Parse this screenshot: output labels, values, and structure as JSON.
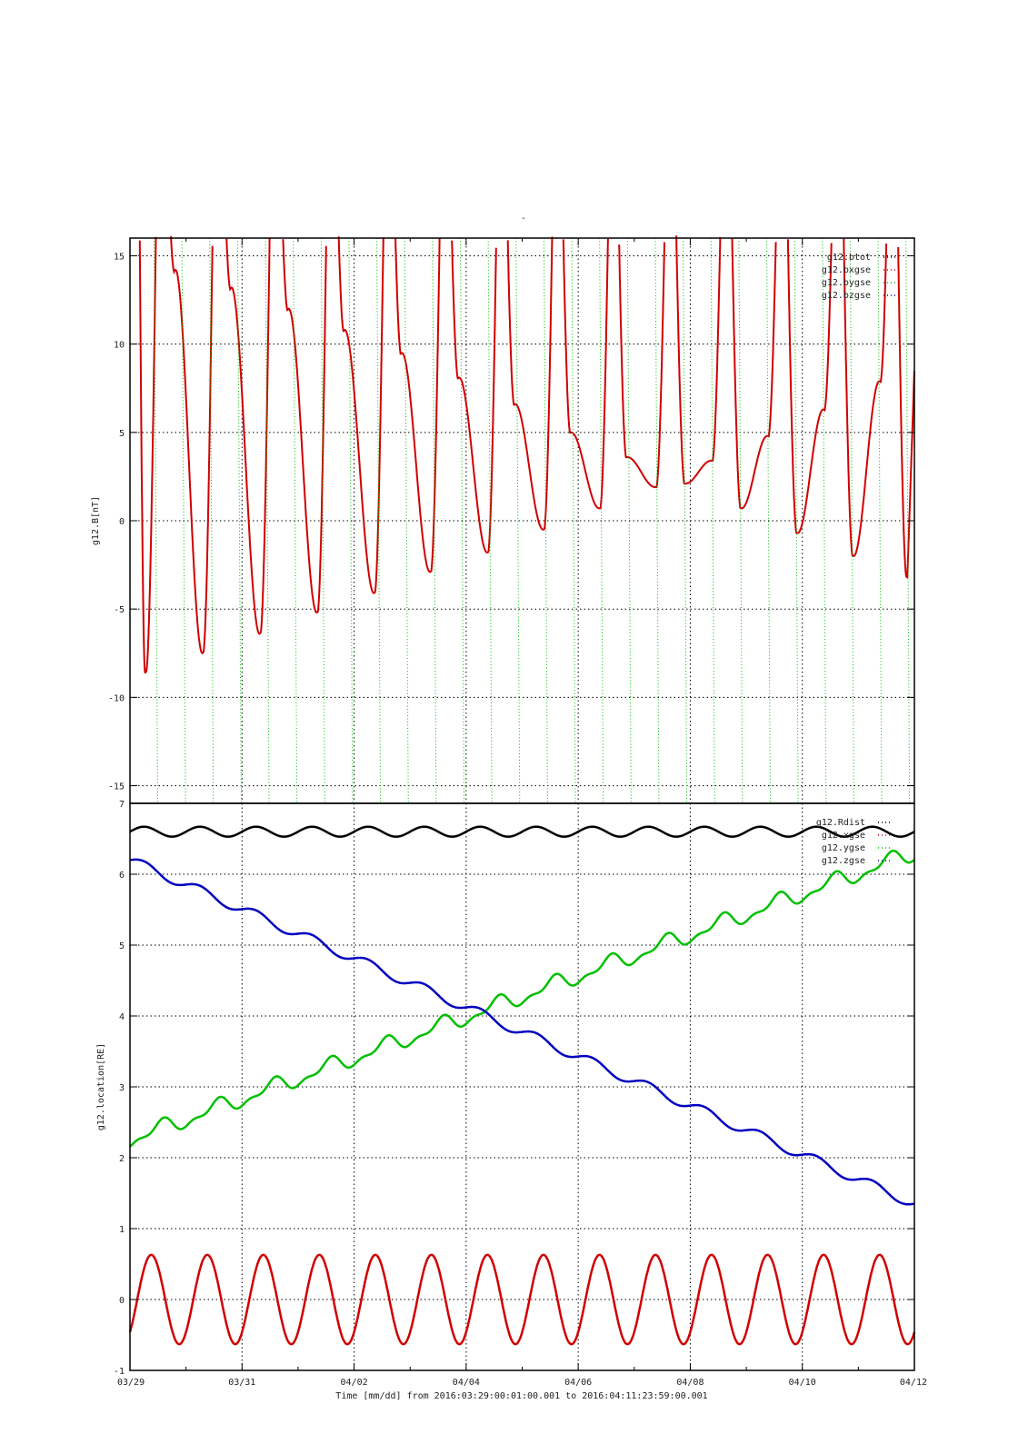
{
  "chart_data": [
    {
      "type": "line",
      "title": "-",
      "ylabel": "g12.B[nT]",
      "ylim": [
        -16,
        16
      ],
      "yticks": [
        -15,
        -10,
        -5,
        0,
        5,
        10,
        15
      ],
      "grid": true,
      "legend_position": "top-right",
      "series": [
        {
          "name": "g12.btot",
          "color": "#000000",
          "values": []
        },
        {
          "name": "g12.bxgse",
          "color": "#d00000",
          "x": [
            "03/29 06:30",
            "03/29 19:30",
            "03/30 07:00",
            "03/30 19:30",
            "03/31 07:30",
            "03/31 20:00",
            "04/01 08:00",
            "04/01 20:00",
            "04/02 08:30",
            "04/02 20:30",
            "04/03 08:30",
            "04/03 21:00",
            "04/04 09:00",
            "04/04 21:00",
            "04/05 09:00",
            "04/05 21:00",
            "04/06 09:00",
            "04/06 21:00",
            "04/07 09:00",
            "04/07 22:00",
            "04/08 09:00",
            "04/08 22:00",
            "04/09 09:00",
            "04/09 22:00",
            "04/10 09:00",
            "04/10 22:00",
            "04/11 09:00",
            "04/11 21:00"
          ],
          "values": [
            -8.6,
            14.2,
            -7.5,
            13.2,
            -6.4,
            12.0,
            -5.2,
            10.8,
            -4.1,
            9.5,
            -2.9,
            8.1,
            -1.8,
            6.6,
            -0.5,
            5.0,
            0.7,
            3.6,
            1.9,
            2.1,
            3.4,
            0.7,
            4.8,
            -0.7,
            6.3,
            -2.0,
            7.9,
            -3.2
          ]
        },
        {
          "name": "g12.bygse",
          "color": "#00c000",
          "values": []
        },
        {
          "name": "g12.bzgse",
          "color": "#0000c0",
          "values": []
        }
      ]
    },
    {
      "type": "line",
      "ylabel": "g12.location[RE]",
      "ylim": [
        -1,
        7
      ],
      "yticks": [
        -1,
        0,
        1,
        2,
        3,
        4,
        5,
        6,
        7
      ],
      "grid": true,
      "legend_position": "top-right",
      "series": [
        {
          "name": "g12.Rdist",
          "color": "#000000",
          "start": 6.6,
          "end": 6.6,
          "amplitude": 0.07
        },
        {
          "name": "g12.xgse",
          "color": "#d00000",
          "start": 0.0,
          "end": 0.0,
          "amplitude": 0.63
        },
        {
          "name": "g12.ygse",
          "color": "#00c000",
          "start": 2.25,
          "end": 6.3,
          "amplitude": 0.2
        },
        {
          "name": "g12.zgse",
          "color": "#0000c0",
          "start": 6.2,
          "end": 1.35,
          "amplitude": 0.07
        }
      ]
    }
  ],
  "xaxis": {
    "ticks": [
      "03/29",
      "03/31",
      "04/02",
      "04/04",
      "04/06",
      "04/08",
      "04/10",
      "04/12"
    ],
    "label": "Time [mm/dd]  from 2016:03:29:00:01:00.001  to  2016:04:11:23:59:00.001",
    "range": [
      "2016-03-29",
      "2016-04-12"
    ]
  }
}
